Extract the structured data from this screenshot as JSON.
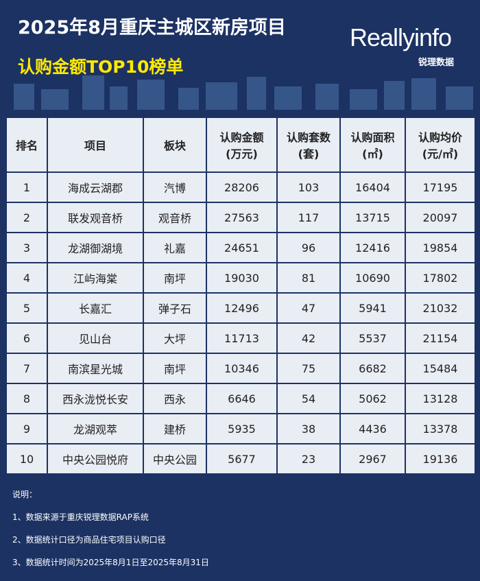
{
  "header": {
    "title": "2025年8月重庆主城区新房项目",
    "subtitle": "认购金额TOP10榜单",
    "logo": "Reallyinfo",
    "logo_sub": "锐理数据"
  },
  "table": {
    "headers": [
      [
        "排名"
      ],
      [
        "项目"
      ],
      [
        "板块"
      ],
      [
        "认购金额",
        "(万元)"
      ],
      [
        "认购套数",
        "(套)"
      ],
      [
        "认购面积",
        "(㎡)"
      ],
      [
        "认购均价",
        "(元/㎡)"
      ]
    ],
    "rows": [
      [
        1,
        "海成云湖郡",
        "汽博",
        28206,
        103,
        16404,
        17195
      ],
      [
        2,
        "联发观音桥",
        "观音桥",
        27563,
        117,
        13715,
        20097
      ],
      [
        3,
        "龙湖御湖境",
        "礼嘉",
        24651,
        96,
        12416,
        19854
      ],
      [
        4,
        "江屿海棠",
        "南坪",
        19030,
        81,
        10690,
        17802
      ],
      [
        5,
        "长嘉汇",
        "弹子石",
        12496,
        47,
        5941,
        21032
      ],
      [
        6,
        "见山台",
        "大坪",
        11713,
        42,
        5537,
        21154
      ],
      [
        7,
        "南滨星光城",
        "南坪",
        10346,
        75,
        6682,
        15484
      ],
      [
        8,
        "西永泷悦长安",
        "西永",
        6646,
        54,
        5062,
        13128
      ],
      [
        9,
        "龙湖观萃",
        "建桥",
        5935,
        38,
        4436,
        13378
      ],
      [
        10,
        "中央公园悦府",
        "中央公园",
        5677,
        23,
        2967,
        19136
      ]
    ]
  },
  "notes": {
    "title": "说明：",
    "items": [
      "1、数据来源于重庆锐理数据RAP系统",
      "2、数据统计口径为商品住宅项目认购口径",
      "3、数据统计时间为2025年8月1日至2025年8月31日"
    ]
  }
}
